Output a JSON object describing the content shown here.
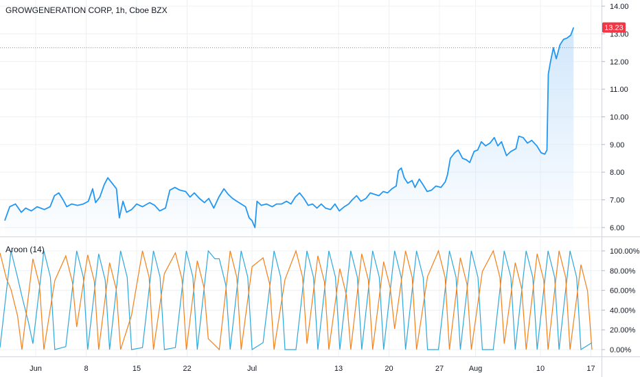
{
  "chart_title": "GROWGENERATION CORP, 1h, Cboe BZX",
  "last_price_label": "13.23",
  "colors": {
    "price_line": "#2196f3",
    "price_fill": "#cfe6fb",
    "aroon_up": "#f57f17",
    "aroon_down": "#2ca7dc",
    "last_price_badge": "#f23645",
    "grid": "#edf0f3",
    "axis_text": "#131722",
    "dotted_line": "#8a8e99"
  },
  "chart_data": [
    {
      "type": "line",
      "title": "GROWGENERATION CORP, 1h, Cboe BZX",
      "ylim": [
        5.7,
        14.1
      ],
      "y_ticks": [
        "14.00",
        "13.00",
        "12.00",
        "11.00",
        "10.00",
        "9.00",
        "8.00",
        "7.00",
        "6.00"
      ],
      "y_tick_values": [
        14,
        13,
        12,
        11,
        10,
        9,
        8,
        7,
        6
      ],
      "x_ticks": [
        "Jun",
        "8",
        "15",
        "22",
        "Jul",
        "13",
        "20",
        "27",
        "Aug",
        "10",
        "17"
      ],
      "x_tick_days": [
        1,
        8,
        15,
        22,
        31,
        43,
        50,
        57,
        62,
        71,
        78
      ],
      "reference_line": 12.5,
      "last_price": 13.23,
      "x_range_days": [
        -3.3,
        78.0
      ],
      "series": [
        {
          "points": [
            [
              -3.3,
              6.25
            ],
            [
              -2.6,
              6.75
            ],
            [
              -1.8,
              6.85
            ],
            [
              -1.0,
              6.55
            ],
            [
              -0.4,
              6.7
            ],
            [
              0.4,
              6.6
            ],
            [
              1.2,
              6.75
            ],
            [
              2.2,
              6.65
            ],
            [
              3.0,
              6.75
            ],
            [
              3.6,
              7.15
            ],
            [
              4.2,
              7.25
            ],
            [
              4.8,
              7.0
            ],
            [
              5.3,
              6.75
            ],
            [
              6.0,
              6.85
            ],
            [
              6.8,
              6.8
            ],
            [
              7.6,
              6.85
            ],
            [
              8.3,
              6.95
            ],
            [
              8.9,
              7.4
            ],
            [
              9.3,
              6.9
            ],
            [
              9.9,
              7.1
            ],
            [
              10.5,
              7.55
            ],
            [
              11.0,
              7.8
            ],
            [
              11.6,
              7.6
            ],
            [
              12.2,
              7.4
            ],
            [
              12.6,
              6.35
            ],
            [
              13.1,
              6.95
            ],
            [
              13.6,
              6.55
            ],
            [
              14.3,
              6.65
            ],
            [
              15.0,
              6.85
            ],
            [
              15.8,
              6.75
            ],
            [
              16.8,
              6.9
            ],
            [
              17.5,
              6.8
            ],
            [
              18.2,
              6.6
            ],
            [
              19.0,
              6.7
            ],
            [
              19.6,
              7.35
            ],
            [
              20.3,
              7.45
            ],
            [
              21.0,
              7.35
            ],
            [
              21.8,
              7.3
            ],
            [
              22.4,
              7.1
            ],
            [
              23.0,
              7.25
            ],
            [
              23.7,
              7.05
            ],
            [
              24.4,
              6.9
            ],
            [
              25.0,
              7.05
            ],
            [
              25.7,
              6.7
            ],
            [
              26.4,
              7.1
            ],
            [
              27.1,
              7.4
            ],
            [
              27.7,
              7.2
            ],
            [
              28.3,
              7.05
            ],
            [
              28.9,
              6.95
            ],
            [
              29.5,
              6.85
            ],
            [
              30.1,
              6.75
            ],
            [
              30.6,
              6.35
            ],
            [
              31.0,
              6.25
            ],
            [
              31.4,
              6.0
            ],
            [
              31.7,
              6.95
            ],
            [
              32.3,
              6.8
            ],
            [
              33.0,
              6.85
            ],
            [
              33.8,
              6.75
            ],
            [
              34.4,
              6.85
            ],
            [
              35.1,
              6.85
            ],
            [
              35.8,
              6.95
            ],
            [
              36.4,
              6.85
            ],
            [
              37.0,
              7.1
            ],
            [
              37.6,
              7.25
            ],
            [
              38.2,
              7.05
            ],
            [
              38.8,
              6.8
            ],
            [
              39.4,
              6.85
            ],
            [
              40.0,
              6.7
            ],
            [
              40.6,
              6.85
            ],
            [
              41.2,
              6.7
            ],
            [
              41.9,
              6.65
            ],
            [
              42.5,
              6.85
            ],
            [
              43.1,
              6.6
            ],
            [
              43.8,
              6.75
            ],
            [
              44.4,
              6.85
            ],
            [
              44.9,
              7.0
            ],
            [
              45.5,
              7.15
            ],
            [
              46.1,
              6.95
            ],
            [
              46.8,
              7.05
            ],
            [
              47.4,
              7.25
            ],
            [
              48.0,
              7.2
            ],
            [
              48.6,
              7.15
            ],
            [
              49.2,
              7.3
            ],
            [
              49.8,
              7.25
            ],
            [
              50.4,
              7.4
            ],
            [
              51.0,
              7.5
            ],
            [
              51.3,
              8.05
            ],
            [
              51.7,
              8.15
            ],
            [
              52.1,
              7.8
            ],
            [
              52.6,
              7.6
            ],
            [
              53.2,
              7.7
            ],
            [
              53.6,
              7.45
            ],
            [
              54.2,
              7.75
            ],
            [
              54.7,
              7.55
            ],
            [
              55.3,
              7.3
            ],
            [
              55.9,
              7.35
            ],
            [
              56.5,
              7.5
            ],
            [
              57.2,
              7.45
            ],
            [
              57.8,
              7.65
            ],
            [
              58.1,
              7.9
            ],
            [
              58.5,
              8.5
            ],
            [
              59.1,
              8.7
            ],
            [
              59.6,
              8.8
            ],
            [
              60.2,
              8.5
            ],
            [
              60.7,
              8.45
            ],
            [
              61.2,
              8.35
            ],
            [
              61.8,
              8.75
            ],
            [
              62.3,
              8.8
            ],
            [
              62.8,
              9.1
            ],
            [
              63.4,
              8.95
            ],
            [
              64.0,
              9.05
            ],
            [
              64.6,
              9.25
            ],
            [
              65.1,
              8.95
            ],
            [
              65.6,
              9.1
            ],
            [
              66.3,
              8.6
            ],
            [
              66.9,
              8.75
            ],
            [
              67.6,
              8.85
            ],
            [
              68.0,
              9.3
            ],
            [
              68.6,
              9.25
            ],
            [
              69.2,
              9.05
            ],
            [
              69.8,
              9.15
            ],
            [
              70.5,
              8.95
            ],
            [
              71.1,
              8.7
            ],
            [
              71.6,
              8.65
            ],
            [
              71.9,
              8.8
            ],
            [
              72.1,
              11.55
            ],
            [
              72.4,
              12.0
            ],
            [
              72.8,
              12.5
            ],
            [
              73.2,
              12.1
            ],
            [
              73.7,
              12.6
            ],
            [
              74.2,
              12.8
            ],
            [
              74.7,
              12.85
            ],
            [
              75.2,
              12.95
            ],
            [
              75.6,
              13.23
            ]
          ]
        }
      ]
    },
    {
      "type": "line",
      "title": "Aroon (14)",
      "ylim": [
        0,
        100
      ],
      "y_ticks": [
        "100.00%",
        "80.00%",
        "60.00%",
        "40.00%",
        "20.00%",
        "0.00%"
      ],
      "y_tick_values": [
        100,
        80,
        60,
        40,
        20,
        0
      ],
      "period": 14,
      "series": [
        {
          "role": "up",
          "seeds": [
            98,
            61,
            0,
            92,
            0,
            70,
            95,
            23,
            96,
            0,
            88,
            0,
            35,
            100,
            0,
            77,
            98,
            0,
            90,
            11,
            0,
            100,
            0,
            84,
            93,
            0,
            71,
            100,
            6,
            95,
            0,
            82,
            0,
            97,
            0,
            89,
            21,
            100,
            0,
            74,
            100,
            0,
            93,
            0,
            79,
            100,
            6,
            88,
            0,
            97,
            0,
            100,
            0,
            86,
            0
          ]
        },
        {
          "role": "down",
          "seeds": [
            2,
            100,
            54,
            6,
            100,
            0,
            3,
            100,
            0,
            97,
            0,
            100,
            0,
            2,
            100,
            0,
            2,
            100,
            0,
            100,
            92,
            0,
            100,
            0,
            7,
            100,
            0,
            0,
            100,
            0,
            100,
            0,
            100,
            0,
            100,
            0,
            100,
            0,
            100,
            0,
            0,
            100,
            0,
            100,
            0,
            0,
            100,
            0,
            100,
            0,
            100,
            0,
            100,
            0,
            7
          ]
        }
      ]
    }
  ]
}
